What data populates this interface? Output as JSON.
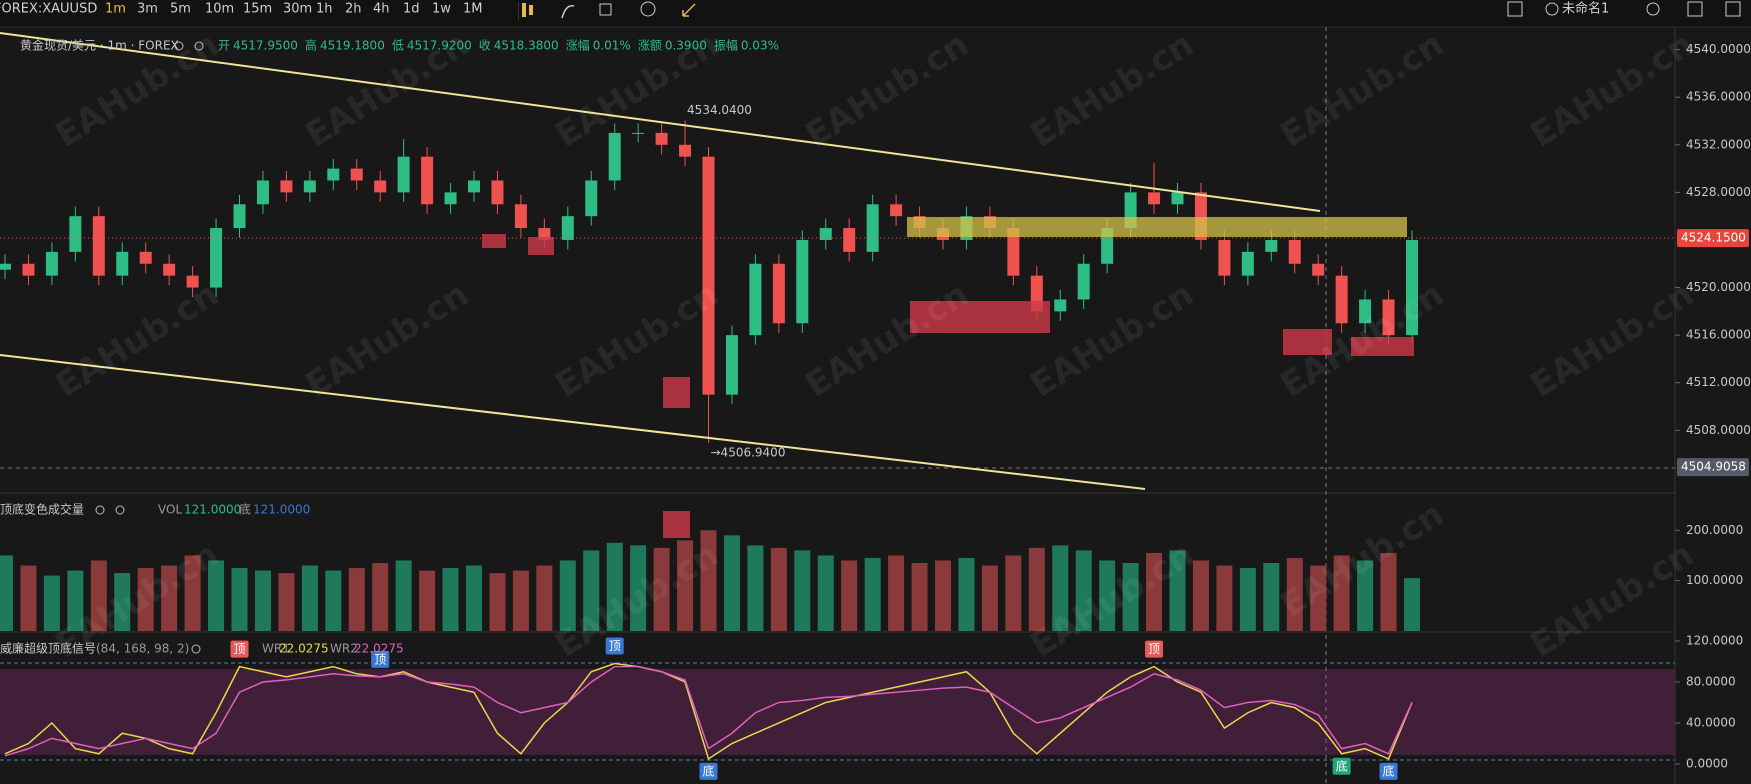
{
  "toolbar": {
    "symbol": "FOREX:XAUUSD",
    "intervals": [
      "1m",
      "3m",
      "5m",
      "10m",
      "15m",
      "30m",
      "1h",
      "2h",
      "4h",
      "1d",
      "1w",
      "1M"
    ],
    "layout_name": "未命名1"
  },
  "watermark": "EAHub.cn",
  "legend": {
    "main_title": "黄金现货/美元 · 1m · FOREX",
    "ohlc": [
      {
        "label": "开",
        "value": "4517.9500"
      },
      {
        "label": "高",
        "value": "4519.1800"
      },
      {
        "label": "低",
        "value": "4517.9200"
      },
      {
        "label": "收",
        "value": "4518.3800"
      },
      {
        "label": "涨幅",
        "value": "0.01%"
      },
      {
        "label": "涨额",
        "value": "0.3900"
      },
      {
        "label": "振幅",
        "value": "0.03%"
      }
    ],
    "volume_title": "顶底变色成交量",
    "vol_label": "VOL",
    "vol_value": "121.0000",
    "bottom_label": "底",
    "bottom_value": "121.0000",
    "indicator_title": "威廉超级顶底信号",
    "indicator_params": "(84, 168, 98, 2)",
    "wr1_label": "WR1",
    "wr1_value": "22.0275",
    "wr2_label": "WR2",
    "wr2_value": "22.0275"
  },
  "chart_data": [
    {
      "type": "candlestick",
      "up_color": "#2ebd85",
      "down_color": "#f0524f",
      "ylim": [
        4502.9,
        4541.9
      ],
      "yticks": [
        {
          "value": 4540,
          "label": "4540.0000"
        },
        {
          "value": 4536,
          "label": "4536.0000"
        },
        {
          "value": 4532,
          "label": "4532.0000"
        },
        {
          "value": 4528,
          "label": "4528.0000"
        },
        {
          "value": 4520,
          "label": "4520.0000"
        },
        {
          "value": 4516,
          "label": "4516.0000"
        },
        {
          "value": 4512,
          "label": "4512.0000"
        },
        {
          "value": 4508,
          "label": "4508.0000"
        }
      ],
      "last_price": {
        "value": 4524.15,
        "label": "4524.1500"
      },
      "crosshair_price": {
        "value": 4504.9058,
        "label": "4504.9058"
      },
      "annotations": [
        {
          "value": 4534.04,
          "label": "4534.0400",
          "at": 29
        },
        {
          "value": 4506.94,
          "label": "→4506.9400",
          "at": 30
        }
      ],
      "candles": [
        [
          4521.5,
          4522.8,
          4520.7,
          4522
        ],
        [
          4522,
          4522.8,
          4520.2,
          4521
        ],
        [
          4521,
          4523.8,
          4520.2,
          4523
        ],
        [
          4523,
          4526.8,
          4522.2,
          4526
        ],
        [
          4526,
          4526.8,
          4520.2,
          4521
        ],
        [
          4521,
          4523.8,
          4520.2,
          4523
        ],
        [
          4523,
          4523.8,
          4521.2,
          4522
        ],
        [
          4522,
          4522.8,
          4520.2,
          4521
        ],
        [
          4521,
          4521.8,
          4519.2,
          4520
        ],
        [
          4520,
          4525.8,
          4519.2,
          4525
        ],
        [
          4525,
          4527.8,
          4524.2,
          4527
        ],
        [
          4527,
          4529.8,
          4526.2,
          4529
        ],
        [
          4529,
          4529.8,
          4527.2,
          4528
        ],
        [
          4528,
          4529.8,
          4527.2,
          4529
        ],
        [
          4529,
          4530.8,
          4528.2,
          4530
        ],
        [
          4530,
          4530.8,
          4528.2,
          4529
        ],
        [
          4529,
          4529.8,
          4527.2,
          4528
        ],
        [
          4528,
          4532.5,
          4527.2,
          4531
        ],
        [
          4531,
          4531.8,
          4526.2,
          4527
        ],
        [
          4527,
          4528.8,
          4526.2,
          4528
        ],
        [
          4528,
          4529.8,
          4527.2,
          4529
        ],
        [
          4529,
          4529.8,
          4526.2,
          4527
        ],
        [
          4527,
          4527.8,
          4524.2,
          4525
        ],
        [
          4525,
          4525.8,
          4523.2,
          4524
        ],
        [
          4524,
          4526.8,
          4523.2,
          4526
        ],
        [
          4526,
          4529.8,
          4525.2,
          4529
        ],
        [
          4529,
          4533.8,
          4528.2,
          4533
        ],
        [
          4533,
          4533.8,
          4532.2,
          4533
        ],
        [
          4533,
          4533.8,
          4531.2,
          4532
        ],
        [
          4532,
          4534.04,
          4530.2,
          4531
        ],
        [
          4531,
          4531.8,
          4506.94,
          4511
        ],
        [
          4511,
          4516.8,
          4510.2,
          4516
        ],
        [
          4516,
          4522.8,
          4515.2,
          4522
        ],
        [
          4522,
          4522.8,
          4516.2,
          4517
        ],
        [
          4517,
          4524.8,
          4516.2,
          4524
        ],
        [
          4524,
          4525.8,
          4523.2,
          4525
        ],
        [
          4525,
          4525.8,
          4522.2,
          4523
        ],
        [
          4523,
          4527.8,
          4522.2,
          4527
        ],
        [
          4527,
          4527.8,
          4525.2,
          4526
        ],
        [
          4526,
          4526.8,
          4524.2,
          4525
        ],
        [
          4525,
          4525.8,
          4523.2,
          4524
        ],
        [
          4524,
          4526.8,
          4523.2,
          4526
        ],
        [
          4526,
          4526.8,
          4524.2,
          4525
        ],
        [
          4525,
          4525.8,
          4520.2,
          4521
        ],
        [
          4521,
          4521.8,
          4517.2,
          4518
        ],
        [
          4518,
          4519.8,
          4517.2,
          4519
        ],
        [
          4519,
          4522.8,
          4518.2,
          4522
        ],
        [
          4522,
          4525.8,
          4521.2,
          4525
        ],
        [
          4525,
          4528.8,
          4524.2,
          4528
        ],
        [
          4528,
          4530.5,
          4526.2,
          4527
        ],
        [
          4527,
          4528.8,
          4526.2,
          4528
        ],
        [
          4528,
          4528.8,
          4523.2,
          4524
        ],
        [
          4524,
          4524.8,
          4520.2,
          4521
        ],
        [
          4521,
          4523.8,
          4520.2,
          4523
        ],
        [
          4523,
          4524.8,
          4522.2,
          4524
        ],
        [
          4524,
          4524.8,
          4521.2,
          4522
        ],
        [
          4522,
          4522.8,
          4520.2,
          4521
        ],
        [
          4521,
          4521.8,
          4516.2,
          4517
        ],
        [
          4517,
          4519.8,
          4516.2,
          4519
        ],
        [
          4519,
          4519.8,
          4515.2,
          4516
        ],
        [
          4516,
          4524.8,
          4515.2,
          4524
        ]
      ]
    },
    {
      "type": "bar",
      "up_color": "#1f7a5c",
      "down_color": "#8a3a3a",
      "ylim": [
        0,
        270
      ],
      "yticks": [
        {
          "value": 200,
          "label": "200.0000"
        },
        {
          "value": 100,
          "label": "100.0000"
        }
      ],
      "values": [
        150,
        130,
        110,
        120,
        140,
        115,
        125,
        130,
        150,
        140,
        125,
        120,
        115,
        130,
        120,
        125,
        135,
        140,
        120,
        125,
        130,
        115,
        120,
        130,
        140,
        160,
        175,
        170,
        165,
        180,
        200,
        190,
        170,
        165,
        160,
        150,
        140,
        145,
        150,
        135,
        140,
        145,
        130,
        150,
        165,
        170,
        160,
        140,
        135,
        155,
        160,
        140,
        130,
        125,
        135,
        145,
        130,
        150,
        140,
        155,
        105
      ]
    },
    {
      "type": "line",
      "ylim": [
        -19.5,
        126.8
      ],
      "yticks": [
        {
          "value": 120,
          "label": "120.0000"
        },
        {
          "value": 80,
          "label": "80.0000"
        },
        {
          "value": 40,
          "label": "40.0000"
        },
        {
          "value": 0,
          "label": "0.0000"
        }
      ],
      "series": [
        {
          "name": "WR1",
          "color": "#e8d84a",
          "values": [
            10,
            20,
            40,
            15,
            10,
            30,
            25,
            15,
            10,
            50,
            95,
            90,
            85,
            90,
            95,
            88,
            85,
            90,
            80,
            75,
            70,
            30,
            10,
            40,
            60,
            90,
            98,
            95,
            90,
            80,
            5,
            20,
            30,
            40,
            50,
            60,
            65,
            70,
            75,
            80,
            85,
            90,
            70,
            30,
            10,
            30,
            50,
            70,
            85,
            95,
            80,
            70,
            35,
            50,
            60,
            55,
            40,
            10,
            15,
            5,
            60
          ]
        },
        {
          "name": "WR2",
          "color": "#e060c0",
          "values": [
            8,
            15,
            25,
            20,
            15,
            20,
            25,
            20,
            15,
            30,
            70,
            80,
            82,
            85,
            88,
            86,
            85,
            88,
            80,
            78,
            75,
            60,
            50,
            55,
            60,
            80,
            95,
            95,
            90,
            82,
            15,
            30,
            50,
            60,
            62,
            65,
            66,
            68,
            70,
            72,
            74,
            75,
            70,
            55,
            40,
            45,
            55,
            65,
            75,
            88,
            82,
            72,
            55,
            60,
            62,
            58,
            48,
            15,
            20,
            10,
            60
          ]
        }
      ],
      "signals": [
        {
          "label": "顶",
          "at": 10,
          "color": "#e85a5a"
        },
        {
          "label": "顶",
          "at": 16,
          "color": "#3a78d8"
        },
        {
          "label": "顶",
          "at": 26,
          "color": "#3a78d8"
        },
        {
          "label": "底",
          "at": 30,
          "color": "#3a78d8"
        },
        {
          "label": "顶",
          "at": 49,
          "color": "#e85a5a"
        },
        {
          "label": "底",
          "at": 57,
          "color": "#22a57a"
        },
        {
          "label": "底",
          "at": 59,
          "color": "#3a78d8"
        }
      ]
    }
  ]
}
